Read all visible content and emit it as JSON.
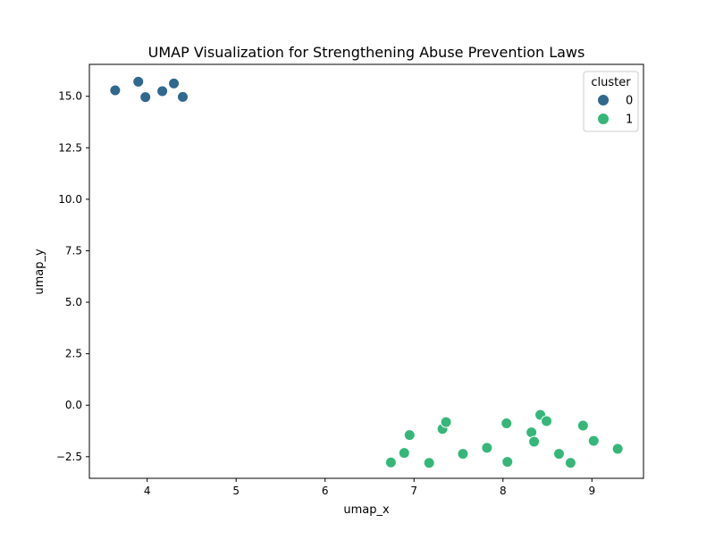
{
  "chart_data": {
    "type": "scatter",
    "title": "UMAP Visualization for Strengthening Abuse Prevention Laws",
    "xlabel": "umap_x",
    "ylabel": "umap_y",
    "xlim": [
      3.35,
      9.58
    ],
    "ylim": [
      -3.55,
      16.55
    ],
    "xticks": [
      4,
      5,
      6,
      7,
      8,
      9
    ],
    "yticks": [
      -2.5,
      0.0,
      2.5,
      5.0,
      7.5,
      10.0,
      12.5,
      15.0
    ],
    "xtick_labels": [
      "4",
      "5",
      "6",
      "7",
      "8",
      "9"
    ],
    "ytick_labels": [
      "−2.5",
      "0.0",
      "2.5",
      "5.0",
      "7.5",
      "10.0",
      "12.5",
      "15.0"
    ],
    "grid": false,
    "legend": {
      "title": "cluster",
      "placement": "top-right",
      "entries": [
        {
          "label": "0",
          "color": "#30688e"
        },
        {
          "label": "1",
          "color": "#35b779"
        }
      ]
    },
    "series": [
      {
        "name": "0",
        "color": "#30688e",
        "points": [
          [
            3.64,
            15.29
          ],
          [
            3.9,
            15.71
          ],
          [
            3.98,
            14.96
          ],
          [
            4.17,
            15.25
          ],
          [
            4.3,
            15.62
          ],
          [
            4.4,
            14.97
          ]
        ]
      },
      {
        "name": "1",
        "color": "#35b779",
        "points": [
          [
            6.74,
            -2.78
          ],
          [
            6.89,
            -2.32
          ],
          [
            6.95,
            -1.45
          ],
          [
            7.17,
            -2.8
          ],
          [
            7.32,
            -1.15
          ],
          [
            7.36,
            -0.82
          ],
          [
            7.55,
            -2.36
          ],
          [
            7.82,
            -2.07
          ],
          [
            8.04,
            -0.88
          ],
          [
            8.05,
            -2.75
          ],
          [
            8.32,
            -1.32
          ],
          [
            8.35,
            -1.77
          ],
          [
            8.42,
            -0.47
          ],
          [
            8.49,
            -0.77
          ],
          [
            8.63,
            -2.36
          ],
          [
            8.76,
            -2.8
          ],
          [
            8.9,
            -0.99
          ],
          [
            9.02,
            -1.73
          ],
          [
            9.29,
            -2.12
          ]
        ]
      }
    ]
  }
}
